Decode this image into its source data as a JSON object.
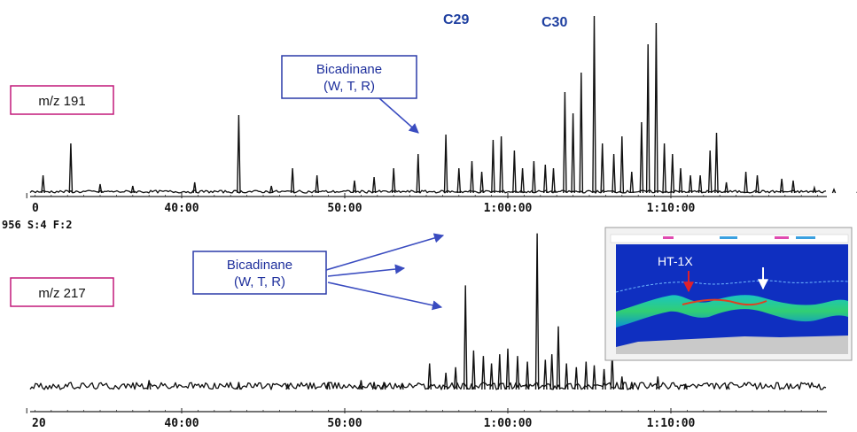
{
  "colors": {
    "trace": "#111111",
    "ion_box_border": "#c2187a",
    "callout_border": "#2a3aa8",
    "callout_text": "#1e2f9c",
    "arrow": "#3a4cc0",
    "peak_label": "#1e3fa0",
    "seismic_bg": "#0f2fc0",
    "seismic_label": "#ffffff",
    "seismic_red_arrow": "#e0202a"
  },
  "chart_data": [
    {
      "type": "line",
      "name": "m/z 191 fragmentogram",
      "ion_label": "m/z 191",
      "callout": {
        "line1": "Bicadinane",
        "line2": "(W, T, R)"
      },
      "peak_labels": [
        "C29",
        "C30"
      ],
      "x_ticks": [
        "0",
        "40:00",
        "50:00",
        "1:00:00",
        "1:10:00"
      ],
      "scan_info": "956 S:4 F:2",
      "y_range": [
        0,
        100
      ],
      "peaks": [
        {
          "t": 31.5,
          "h": 10
        },
        {
          "t": 33.2,
          "h": 28
        },
        {
          "t": 35.0,
          "h": 5
        },
        {
          "t": 37.0,
          "h": 4
        },
        {
          "t": 40.8,
          "h": 6
        },
        {
          "t": 43.5,
          "h": 44
        },
        {
          "t": 45.5,
          "h": 4
        },
        {
          "t": 46.8,
          "h": 14
        },
        {
          "t": 48.3,
          "h": 10
        },
        {
          "t": 50.6,
          "h": 7
        },
        {
          "t": 51.8,
          "h": 9
        },
        {
          "t": 53.0,
          "h": 14
        },
        {
          "t": 54.5,
          "h": 22
        },
        {
          "t": 56.2,
          "h": 33
        },
        {
          "t": 57.0,
          "h": 14
        },
        {
          "t": 57.8,
          "h": 18
        },
        {
          "t": 58.4,
          "h": 12
        },
        {
          "t": 59.1,
          "h": 30
        },
        {
          "t": 59.6,
          "h": 32
        },
        {
          "t": 60.4,
          "h": 24
        },
        {
          "t": 60.9,
          "h": 14
        },
        {
          "t": 61.6,
          "h": 18
        },
        {
          "t": 62.3,
          "h": 16
        },
        {
          "t": 62.8,
          "h": 14
        },
        {
          "t": 63.5,
          "h": 57
        },
        {
          "t": 64.0,
          "h": 45
        },
        {
          "t": 64.5,
          "h": 68
        },
        {
          "t": 65.3,
          "h": 100
        },
        {
          "t": 65.8,
          "h": 28
        },
        {
          "t": 66.5,
          "h": 22
        },
        {
          "t": 67.0,
          "h": 32
        },
        {
          "t": 67.6,
          "h": 12
        },
        {
          "t": 68.2,
          "h": 40
        },
        {
          "t": 68.6,
          "h": 84
        },
        {
          "t": 69.1,
          "h": 96
        },
        {
          "t": 69.6,
          "h": 28
        },
        {
          "t": 70.1,
          "h": 22
        },
        {
          "t": 70.6,
          "h": 14
        },
        {
          "t": 71.2,
          "h": 10
        },
        {
          "t": 71.8,
          "h": 10
        },
        {
          "t": 72.4,
          "h": 24
        },
        {
          "t": 72.8,
          "h": 34
        },
        {
          "t": 73.4,
          "h": 6
        },
        {
          "t": 74.6,
          "h": 12
        },
        {
          "t": 75.3,
          "h": 10
        },
        {
          "t": 76.8,
          "h": 8
        },
        {
          "t": 77.5,
          "h": 7
        },
        {
          "t": 78.8,
          "h": 3
        },
        {
          "t": 80.0,
          "h": 2
        },
        {
          "t": 81.5,
          "h": 2
        }
      ]
    },
    {
      "type": "line",
      "name": "m/z 217 fragmentogram",
      "ion_label": "m/z 217",
      "callout": {
        "line1": "Bicadinane",
        "line2": "(W, T, R)"
      },
      "x_ticks": [
        "20",
        "40:00",
        "50:00",
        "1:00:00",
        "1:10:00"
      ],
      "y_range": [
        0,
        100
      ],
      "peaks": [
        {
          "t": 38.0,
          "h": 5
        },
        {
          "t": 43.5,
          "h": 4
        },
        {
          "t": 46.5,
          "h": 3
        },
        {
          "t": 49.0,
          "h": 4
        },
        {
          "t": 51.0,
          "h": 5
        },
        {
          "t": 51.8,
          "h": 4
        },
        {
          "t": 52.4,
          "h": 4
        },
        {
          "t": 53.5,
          "h": 3
        },
        {
          "t": 55.2,
          "h": 14
        },
        {
          "t": 56.2,
          "h": 9
        },
        {
          "t": 56.8,
          "h": 12
        },
        {
          "t": 57.4,
          "h": 56
        },
        {
          "t": 57.9,
          "h": 21
        },
        {
          "t": 58.5,
          "h": 18
        },
        {
          "t": 59.0,
          "h": 14
        },
        {
          "t": 59.5,
          "h": 19
        },
        {
          "t": 60.0,
          "h": 22
        },
        {
          "t": 60.6,
          "h": 18
        },
        {
          "t": 61.2,
          "h": 15
        },
        {
          "t": 61.8,
          "h": 84
        },
        {
          "t": 62.3,
          "h": 16
        },
        {
          "t": 62.7,
          "h": 19
        },
        {
          "t": 63.1,
          "h": 34
        },
        {
          "t": 63.6,
          "h": 14
        },
        {
          "t": 64.2,
          "h": 12
        },
        {
          "t": 64.8,
          "h": 15
        },
        {
          "t": 65.3,
          "h": 13
        },
        {
          "t": 65.9,
          "h": 11
        },
        {
          "t": 66.4,
          "h": 19
        },
        {
          "t": 67.0,
          "h": 7
        },
        {
          "t": 67.6,
          "h": 4
        },
        {
          "t": 69.2,
          "h": 7
        },
        {
          "t": 70.9,
          "h": 3
        },
        {
          "t": 73.5,
          "h": 2
        }
      ]
    }
  ],
  "seismic": {
    "well_label": "HT-1X"
  }
}
